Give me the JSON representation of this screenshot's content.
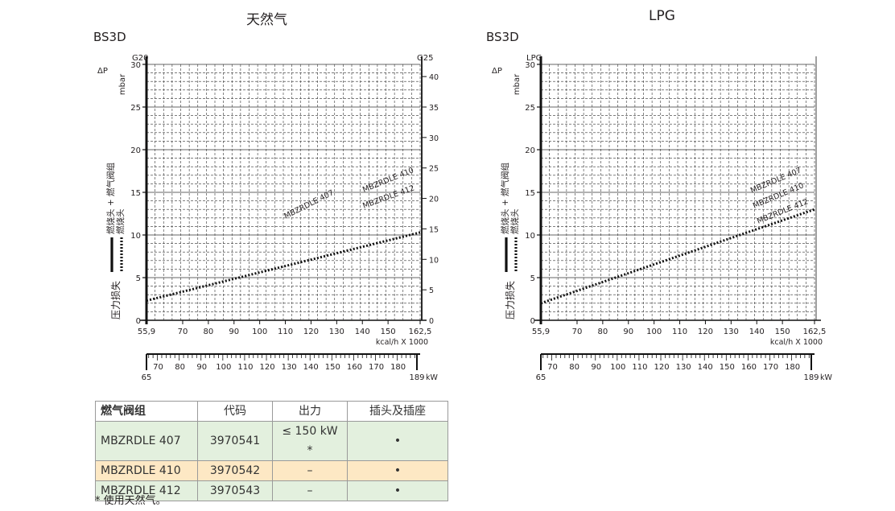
{
  "charts": {
    "left": {
      "title": "天然气",
      "subtitle": "BS3D",
      "delta_p": "ΔP",
      "unit_mbar": "mbar",
      "left_axis_label": "G20",
      "right_axis_label": "G25",
      "y_label_main": "压力损失",
      "legend_solid": "燃烧头 + 燃气阀组",
      "legend_dotted": "燃烧头",
      "kcal_unit": "kcal/h X 1000",
      "kw_unit": "kW",
      "series_labels": [
        "MBZRDLE 407",
        "MBZRDLE 410",
        "MBZRDLE 412"
      ]
    },
    "right": {
      "title": "LPG",
      "subtitle": "BS3D",
      "delta_p": "ΔP",
      "unit_mbar": "mbar",
      "left_axis_label": "LPG",
      "y_label_main": "压力损失",
      "legend_solid": "燃烧头 + 燃气阀组",
      "legend_dotted": "燃烧头",
      "kcal_unit": "kcal/h X 1000",
      "kw_unit": "kW",
      "series_labels": [
        "MBZRDLE 407",
        "MBZRDLE 410",
        "MBZRDLE 412"
      ]
    }
  },
  "chart_data": [
    {
      "type": "line",
      "title": "天然气",
      "subtitle": "BS3D",
      "xlabel": "kcal/h X 1000",
      "ylabel": "mbar",
      "xlim": [
        55.9,
        162.5
      ],
      "ylim": [
        0,
        30
      ],
      "x_ticks": [
        "55,9",
        "70",
        "80",
        "90",
        "100",
        "110",
        "120",
        "130",
        "140",
        "150",
        "162,5"
      ],
      "y_ticks": [
        0,
        5,
        10,
        15,
        20,
        25,
        30
      ],
      "secondary_y": {
        "label": "G25",
        "ticks": [
          0,
          5,
          10,
          15,
          20,
          25,
          30,
          35,
          40
        ]
      },
      "secondary_x": {
        "label": "kW",
        "start": "65",
        "end": "189",
        "ticks": [
          70,
          80,
          90,
          100,
          110,
          120,
          130,
          140,
          150,
          160,
          170,
          180
        ]
      },
      "series": [
        {
          "name": "燃烧头",
          "style": "dotted",
          "x": [
            55.9,
            162.5
          ],
          "y": [
            2.3,
            10.3
          ]
        }
      ],
      "annotations": [
        "MBZRDLE 407",
        "MBZRDLE 410",
        "MBZRDLE 412"
      ]
    },
    {
      "type": "line",
      "title": "LPG",
      "subtitle": "BS3D",
      "xlabel": "kcal/h X 1000",
      "ylabel": "mbar",
      "xlim": [
        55.9,
        162.5
      ],
      "ylim": [
        0,
        30
      ],
      "x_ticks": [
        "55,9",
        "70",
        "80",
        "90",
        "100",
        "110",
        "120",
        "130",
        "140",
        "150",
        "162,5"
      ],
      "y_ticks": [
        0,
        5,
        10,
        15,
        20,
        25,
        30
      ],
      "secondary_x": {
        "label": "kW",
        "start": "65",
        "end": "189",
        "ticks": [
          70,
          80,
          90,
          100,
          110,
          120,
          130,
          140,
          150,
          160,
          170,
          180
        ]
      },
      "series": [
        {
          "name": "燃烧头",
          "style": "dotted",
          "x": [
            55.9,
            162.5
          ],
          "y": [
            2.0,
            13.0
          ]
        }
      ],
      "annotations": [
        "MBZRDLE 407",
        "MBZRDLE 410",
        "MBZRDLE 412"
      ]
    }
  ],
  "table": {
    "headers": [
      "燃气阀组",
      "代码",
      "出力",
      "插头及插座"
    ],
    "rows": [
      {
        "model": "MBZRDLE 407",
        "code": "3970541",
        "output": "≤ 150 kW *",
        "plug": "•",
        "color": "#e3f0de"
      },
      {
        "model": "MBZRDLE 410",
        "code": "3970542",
        "output": "–",
        "plug": "•",
        "color": "#fde8c4"
      },
      {
        "model": "MBZRDLE 412",
        "code": "3970543",
        "output": "–",
        "plug": "•",
        "color": "#e3f0de"
      }
    ]
  },
  "footnote": "* 使用天然气。"
}
